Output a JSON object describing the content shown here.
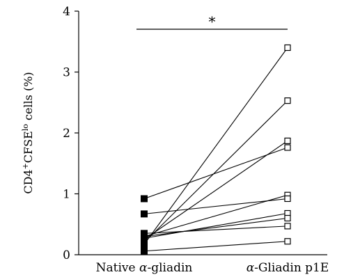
{
  "chart_data": {
    "type": "line",
    "title": "",
    "ylabel": {
      "prefix": "CD4",
      "prefix_sup": "+",
      "main": "CFSE",
      "main_sup": "lo",
      "suffix": " cells (%)"
    },
    "xlabel": "",
    "ylim": [
      0,
      4
    ],
    "yticks": [
      0,
      1,
      2,
      3,
      4
    ],
    "categories": [
      {
        "prefix": "Native ",
        "greek": "α",
        "suffix": "-gliadin"
      },
      {
        "prefix": "",
        "greek": "α",
        "suffix": "-Gliadin p1E"
      }
    ],
    "grid": false,
    "legend": "none",
    "marker_style": [
      "filled-square",
      "open-square"
    ],
    "significance": {
      "label": "*",
      "between": [
        0,
        1
      ]
    },
    "pairs": [
      [
        0.06,
        0.22
      ],
      [
        0.17,
        3.4
      ],
      [
        0.2,
        2.53
      ],
      [
        0.25,
        1.87
      ],
      [
        0.27,
        0.68
      ],
      [
        0.3,
        0.98
      ],
      [
        0.3,
        0.6
      ],
      [
        0.35,
        0.47
      ],
      [
        0.67,
        0.92
      ],
      [
        0.92,
        1.76
      ]
    ]
  }
}
